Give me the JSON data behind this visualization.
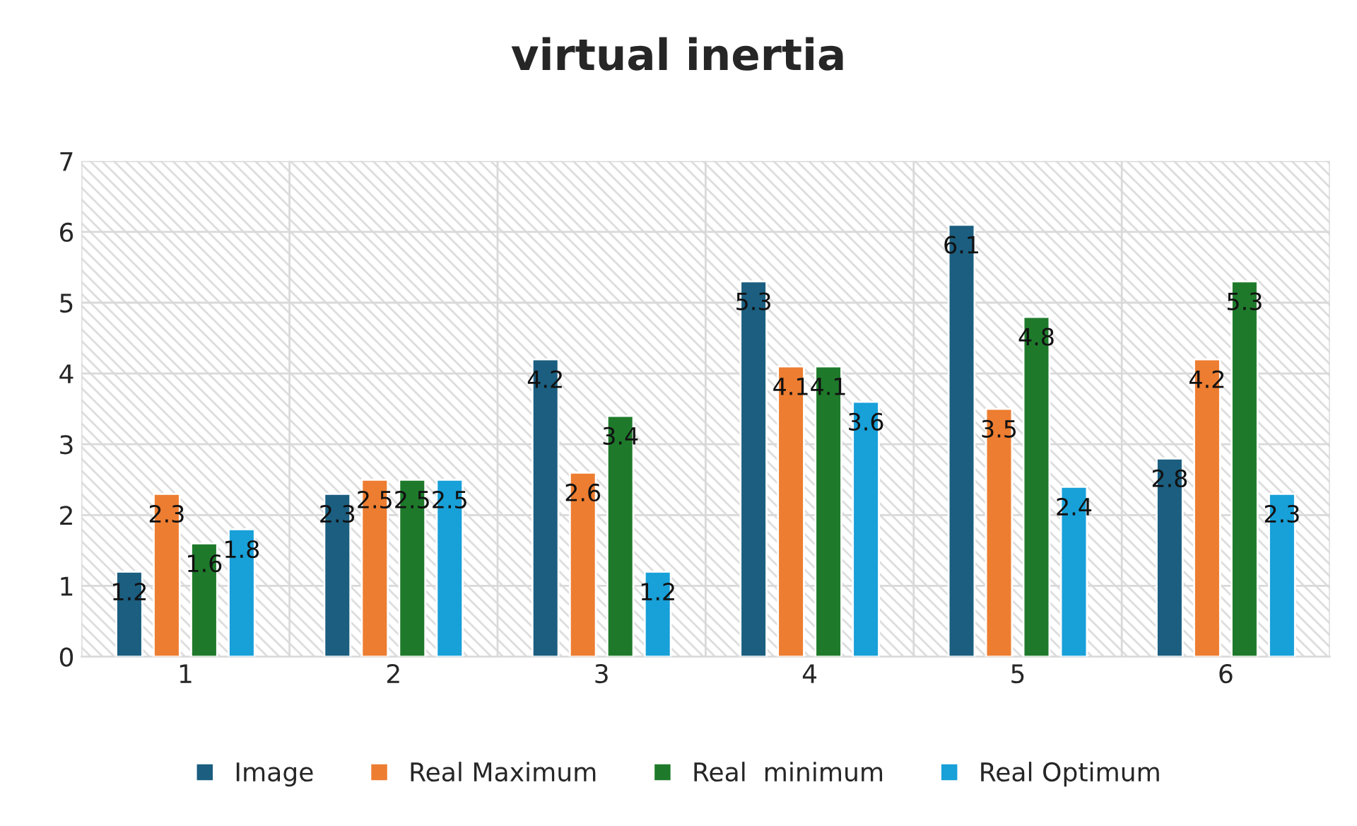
{
  "chart_data": {
    "type": "bar",
    "title": "virtual inertia",
    "categories": [
      "1",
      "2",
      "3",
      "4",
      "5",
      "6"
    ],
    "series": [
      {
        "name": "Image",
        "color": "#1b5e80",
        "values": [
          1.2,
          2.3,
          4.2,
          5.3,
          6.1,
          2.8
        ]
      },
      {
        "name": "Real Maximum",
        "color": "#ed7d31",
        "values": [
          2.3,
          2.5,
          2.6,
          4.1,
          3.5,
          4.2
        ]
      },
      {
        "name": "Real  minimum",
        "color": "#1e7a2a",
        "values": [
          1.6,
          2.5,
          3.4,
          4.1,
          4.8,
          5.3
        ]
      },
      {
        "name": "Real Optimum",
        "color": "#18a0d8",
        "values": [
          1.8,
          2.5,
          1.2,
          3.6,
          2.4,
          2.3
        ]
      }
    ],
    "ylim": [
      0,
      7
    ],
    "yticks": [
      0,
      1,
      2,
      3,
      4,
      5,
      6,
      7
    ],
    "grid": true,
    "legend": "bottom",
    "data_labels": true
  }
}
